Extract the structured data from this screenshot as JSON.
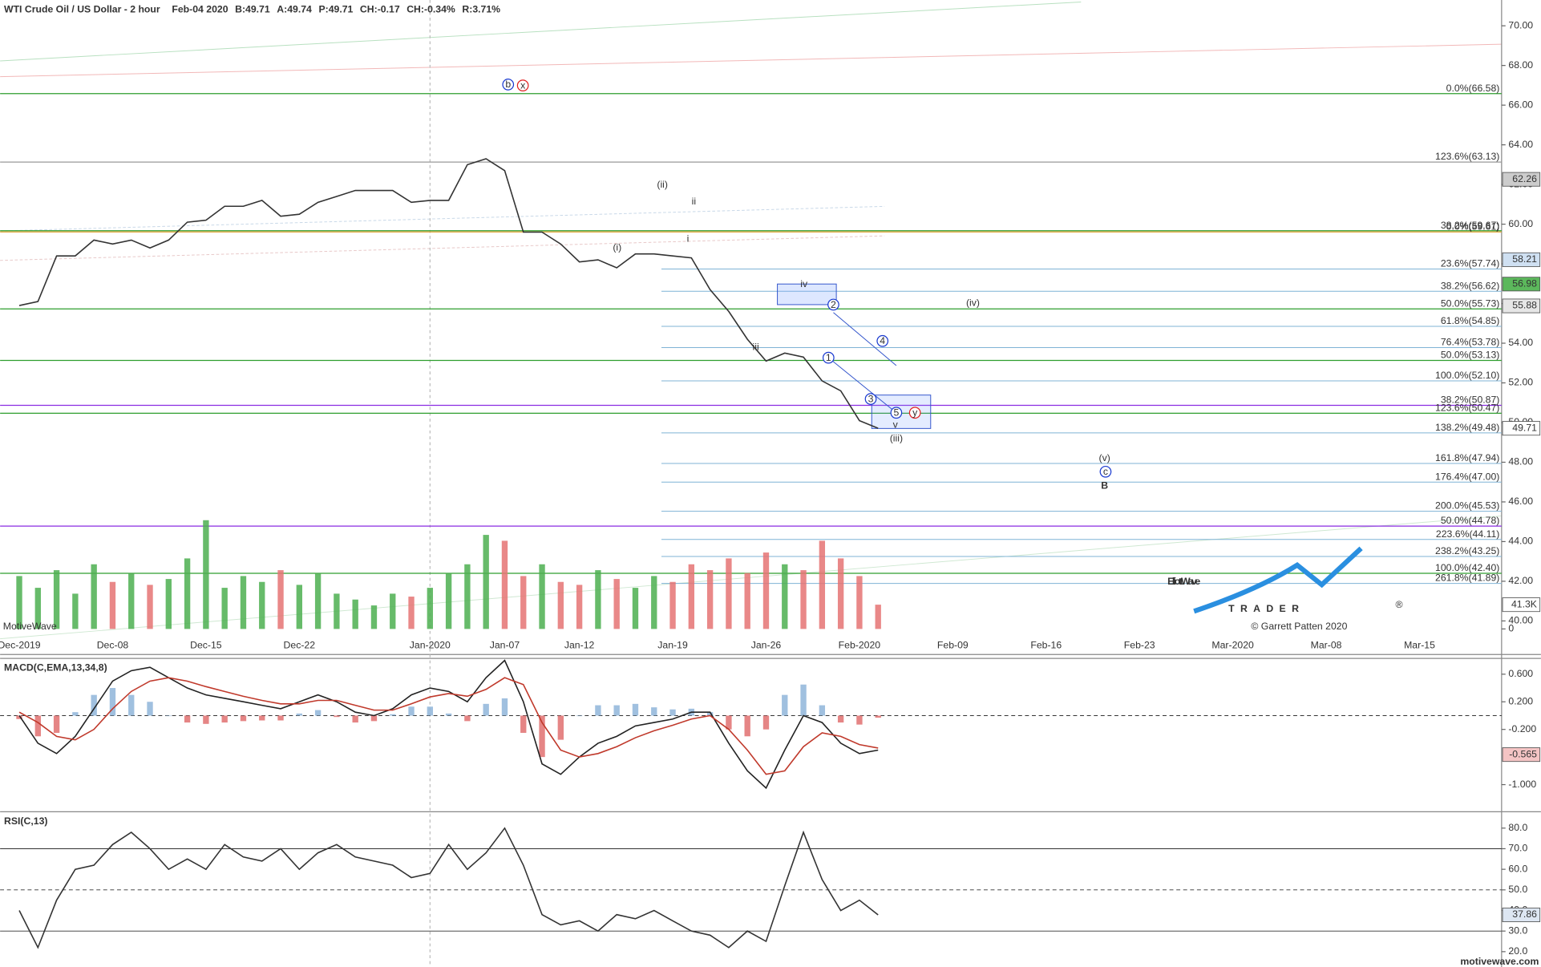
{
  "chart_data": [
    {
      "type": "line",
      "title": "WTI Crude Oil / US Dollar - 2 hour",
      "header_stats": [
        "Feb-04 2020",
        "B:49.71",
        "A:49.74",
        "P:49.71",
        "CH:-0.17",
        "CH:-0.34%",
        "R:3.71%"
      ],
      "categories": [
        "Dec-2019",
        null,
        null,
        null,
        null,
        "Dec-08",
        null,
        null,
        null,
        null,
        "Dec-15",
        null,
        null,
        null,
        null,
        "Dec-22",
        null,
        null,
        null,
        null,
        null,
        null,
        "Jan-2020",
        null,
        null,
        null,
        "Jan-07",
        null,
        null,
        null,
        "Jan-12",
        null,
        null,
        null,
        null,
        "Jan-19",
        null,
        null,
        null,
        null,
        "Jan-26",
        null,
        null,
        null,
        null,
        "Feb-2020",
        null,
        null,
        null,
        null,
        "Feb-09",
        null,
        null,
        null,
        null,
        "Feb-16",
        null,
        null,
        null,
        null,
        "Feb-23",
        null,
        null,
        null,
        null,
        "Mar-2020",
        null,
        null,
        null,
        null,
        "Mar-08",
        null,
        null,
        null,
        null,
        "Mar-15",
        null,
        null,
        null,
        null
      ],
      "series": [
        {
          "color": "#333333",
          "values": [
            55.9,
            56.1,
            58.4,
            58.4,
            59.2,
            59.0,
            59.2,
            58.8,
            59.2,
            60.1,
            60.2,
            60.9,
            60.9,
            61.2,
            60.4,
            60.5,
            61.1,
            61.4,
            61.7,
            61.7,
            61.7,
            61.1,
            61.2,
            61.2,
            63.0,
            63.3,
            62.7,
            59.6,
            59.6,
            59.0,
            58.1,
            58.2,
            57.8,
            58.5,
            58.5,
            58.4,
            58.3,
            56.7,
            55.6,
            54.2,
            53.1,
            53.5,
            53.3,
            52.1,
            51.6,
            50.1,
            49.71,
            null,
            null,
            null,
            null,
            null,
            null,
            null,
            null,
            null,
            null,
            null,
            null,
            null,
            null,
            null,
            null,
            null,
            null,
            null,
            null,
            null,
            null,
            null,
            null,
            null,
            null,
            null,
            null,
            null,
            null,
            null,
            null,
            null
          ]
        },
        {
          "type": "bar",
          "axis": "y2",
          "color": "#4caf50",
          "negative_color": "#e57373",
          "values": [
            90000,
            70000,
            100000,
            60000,
            110000,
            80000,
            95000,
            75000,
            85000,
            120000,
            185000,
            70000,
            90000,
            80000,
            100000,
            75000,
            95000,
            60000,
            50000,
            40000,
            60000,
            55000,
            70000,
            95000,
            110000,
            160000,
            150000,
            90000,
            110000,
            80000,
            75000,
            100000,
            85000,
            70000,
            90000,
            80000,
            110000,
            100000,
            120000,
            95000,
            130000,
            110000,
            100000,
            150000,
            120000,
            90000,
            41300,
            null,
            null,
            null,
            null,
            null,
            null,
            null,
            null,
            null,
            null,
            null,
            null,
            null,
            null,
            null,
            null,
            null,
            null,
            null,
            null,
            null,
            null,
            null,
            null,
            null,
            null,
            null,
            null,
            null,
            null,
            null,
            null,
            null
          ]
        }
      ],
      "ylim": [
        39.2,
        71.3
      ],
      "yticks": [
        {
          "value": 40,
          "label": "40.00"
        },
        {
          "value": 42,
          "label": "42.00"
        },
        {
          "value": 44,
          "label": "44.00"
        },
        {
          "value": 46,
          "label": "46.00"
        },
        {
          "value": 48,
          "label": "48.00"
        },
        {
          "value": 50,
          "label": "50.00"
        },
        {
          "value": 52,
          "label": "52.00"
        },
        {
          "value": 54,
          "label": "54.00"
        },
        {
          "value": 56,
          "label": "56.00"
        },
        {
          "value": 58,
          "label": "58.00"
        },
        {
          "value": 60,
          "label": "60.00"
        },
        {
          "value": 62,
          "label": "62.00"
        },
        {
          "value": 64,
          "label": "64.00"
        },
        {
          "value": 66,
          "label": "66.00"
        },
        {
          "value": 68,
          "label": "68.00"
        },
        {
          "value": 70,
          "label": "70.00"
        }
      ],
      "y2lim": [
        0,
        1070000
      ],
      "y2ticks": [
        0
      ],
      "volume_badge": {
        "value": 41300,
        "label": "41.3K"
      },
      "price_badges": [
        62.26,
        58.21,
        56.98,
        55.88,
        49.71
      ],
      "levels": [
        {
          "label": "0.0%(66.58)",
          "value": 66.58,
          "color": "#2e9e2e",
          "span": "full"
        },
        {
          "label": "123.6%(63.13)",
          "value": 63.13,
          "color": "#999999",
          "span": "full"
        },
        {
          "label": "38.2%(59.67)",
          "value": 59.67,
          "color": "#2e9e2e",
          "span": "full"
        },
        {
          "label": "0.0%(59.61)",
          "value": 59.61,
          "color": "#e0a030",
          "span": "full"
        },
        {
          "label": "23.6%(57.74)",
          "value": 57.74,
          "color": "#7fb3d5",
          "span": "projection"
        },
        {
          "label": "38.2%(56.62)",
          "value": 56.62,
          "color": "#7fb3d5",
          "span": "projection"
        },
        {
          "label": "50.0%(55.73)",
          "value": 55.73,
          "color": "#2e9e2e",
          "span": "full"
        },
        {
          "label": "61.8%(54.85)",
          "value": 54.85,
          "color": "#7fb3d5",
          "span": "projection"
        },
        {
          "label": "76.4%(53.78)",
          "value": 53.78,
          "color": "#7fb3d5",
          "span": "projection"
        },
        {
          "label": "50.0%(53.13)",
          "value": 53.13,
          "color": "#2e9e2e",
          "span": "full"
        },
        {
          "label": "100.0%(52.10)",
          "value": 52.1,
          "color": "#7fb3d5",
          "span": "projection"
        },
        {
          "label": "38.2%(50.87)",
          "value": 50.87,
          "color": "#8a2be2",
          "span": "full"
        },
        {
          "label": "123.6%(50.47)",
          "value": 50.47,
          "color": "#2e9e2e",
          "span": "full"
        },
        {
          "label": "138.2%(49.48)",
          "value": 49.48,
          "color": "#7fb3d5",
          "span": "projection"
        },
        {
          "label": "161.8%(47.94)",
          "value": 47.94,
          "color": "#7fb3d5",
          "span": "projection"
        },
        {
          "label": "176.4%(47.00)",
          "value": 47.0,
          "color": "#7fb3d5",
          "span": "projection"
        },
        {
          "label": "200.0%(45.53)",
          "value": 45.53,
          "color": "#7fb3d5",
          "span": "projection"
        },
        {
          "label": "50.0%(44.78)",
          "value": 44.78,
          "color": "#8a2be2",
          "span": "full"
        },
        {
          "label": "223.6%(44.11)",
          "value": 44.11,
          "color": "#7fb3d5",
          "span": "projection"
        },
        {
          "label": "238.2%(43.25)",
          "value": 43.25,
          "color": "#7fb3d5",
          "span": "projection"
        },
        {
          "label": "100.0%(42.40)",
          "value": 42.4,
          "color": "#2e9e2e",
          "span": "full"
        },
        {
          "label": "261.8%(41.89)",
          "value": 41.89,
          "color": "#7fb3d5",
          "span": "projection"
        }
      ],
      "wave_labels": [
        "(ii)",
        "ii",
        "i",
        "(i)",
        "iii",
        "iv",
        "(iv)",
        "v",
        "(iii)",
        "(v)",
        "B",
        "b",
        "x",
        "y",
        "1",
        "2",
        "3",
        "4",
        "5",
        "c"
      ]
    },
    {
      "type": "line",
      "title": "MACD(C,EMA,13,34,8)",
      "series": [
        {
          "color": "#222222",
          "values": [
            0.0,
            -0.4,
            -0.55,
            -0.3,
            0.1,
            0.5,
            0.65,
            0.7,
            0.55,
            0.4,
            0.3,
            0.25,
            0.2,
            0.15,
            0.1,
            0.2,
            0.3,
            0.2,
            0.05,
            0.0,
            0.1,
            0.3,
            0.4,
            0.35,
            0.2,
            0.55,
            0.8,
            0.2,
            -0.7,
            -0.85,
            -0.6,
            -0.4,
            -0.3,
            -0.15,
            -0.1,
            -0.05,
            0.05,
            0.05,
            -0.4,
            -0.8,
            -1.05,
            -0.5,
            0.0,
            -0.1,
            -0.4,
            -0.55,
            -0.5,
            null,
            null,
            null,
            null,
            null,
            null,
            null,
            null,
            null,
            null,
            null,
            null,
            null,
            null,
            null,
            null,
            null,
            null,
            null,
            null,
            null,
            null,
            null,
            null,
            null,
            null,
            null,
            null,
            null,
            null,
            null,
            null,
            null
          ]
        },
        {
          "color": "#c0392b",
          "values": [
            0.05,
            -0.1,
            -0.3,
            -0.35,
            -0.2,
            0.1,
            0.35,
            0.5,
            0.55,
            0.5,
            0.42,
            0.35,
            0.28,
            0.22,
            0.17,
            0.17,
            0.22,
            0.22,
            0.15,
            0.08,
            0.08,
            0.17,
            0.27,
            0.32,
            0.28,
            0.38,
            0.55,
            0.45,
            -0.1,
            -0.5,
            -0.6,
            -0.55,
            -0.45,
            -0.32,
            -0.22,
            -0.14,
            -0.05,
            0.0,
            -0.2,
            -0.5,
            -0.85,
            -0.8,
            -0.45,
            -0.25,
            -0.3,
            -0.42,
            -0.47,
            null,
            null,
            null,
            null,
            null,
            null,
            null,
            null,
            null,
            null,
            null,
            null,
            null,
            null,
            null,
            null,
            null,
            null,
            null,
            null,
            null,
            null,
            null,
            null,
            null,
            null,
            null,
            null,
            null,
            null,
            null,
            null,
            null
          ]
        },
        {
          "type": "bar",
          "color": "#8fb5d9",
          "negative_color": "#e07070",
          "values": [
            -0.05,
            -0.3,
            -0.25,
            0.05,
            0.3,
            0.4,
            0.3,
            0.2,
            0.0,
            -0.1,
            -0.12,
            -0.1,
            -0.08,
            -0.07,
            -0.07,
            0.03,
            0.08,
            -0.02,
            -0.1,
            -0.08,
            0.02,
            0.13,
            0.13,
            0.03,
            -0.08,
            0.17,
            0.25,
            -0.25,
            -0.6,
            -0.35,
            0.0,
            0.15,
            0.15,
            0.17,
            0.12,
            0.09,
            0.1,
            0.05,
            -0.2,
            -0.3,
            -0.2,
            0.3,
            0.45,
            0.15,
            -0.1,
            -0.13,
            -0.03,
            null,
            null,
            null,
            null,
            null,
            null,
            null,
            null,
            null,
            null,
            null,
            null,
            null,
            null,
            null,
            null,
            null,
            null,
            null,
            null,
            null,
            null,
            null,
            null,
            null,
            null,
            null,
            null,
            null,
            null,
            null,
            null,
            null
          ]
        }
      ],
      "ylim": [
        -1.35,
        0.8
      ],
      "yticks": [
        {
          "value": 0.6,
          "label": "0.600"
        },
        {
          "value": 0.2,
          "label": "0.200"
        },
        {
          "value": -0.2,
          "label": "-0.200"
        },
        {
          "value": -1,
          "label": "-1.000"
        }
      ],
      "dashed_lines": [
        0
      ],
      "reference_lines": [],
      "badge": -0.565
    },
    {
      "type": "line",
      "title": "RSI(C,13)",
      "series": [
        {
          "color": "#333333",
          "values": [
            40,
            22,
            45,
            60,
            62,
            72,
            78,
            70,
            60,
            65,
            60,
            72,
            66,
            64,
            70,
            60,
            68,
            72,
            66,
            64,
            62,
            56,
            58,
            72,
            60,
            68,
            80,
            62,
            38,
            33,
            35,
            30,
            38,
            36,
            40,
            35,
            30,
            28,
            22,
            30,
            25,
            52,
            78,
            55,
            40,
            45,
            37.86,
            null,
            null,
            null,
            null,
            null,
            null,
            null,
            null,
            null,
            null,
            null,
            null,
            null,
            null,
            null,
            null,
            null,
            null,
            null,
            null,
            null,
            null,
            null,
            null,
            null,
            null,
            null,
            null,
            null,
            null,
            null,
            null,
            null
          ]
        }
      ],
      "ylim": [
        13.5,
        87
      ],
      "yticks": [
        {
          "value": 20,
          "label": "20.0"
        },
        {
          "value": 30,
          "label": "30.0"
        },
        {
          "value": 40,
          "label": "40.0"
        },
        {
          "value": 50,
          "label": "50.0"
        },
        {
          "value": 60,
          "label": "60.0"
        },
        {
          "value": 70,
          "label": "70.0"
        },
        {
          "value": 80,
          "label": "80.0"
        }
      ],
      "dashed_lines": [
        50
      ],
      "reference_lines": [
        70,
        30
      ],
      "badge": 37.86
    }
  ],
  "branding": {
    "logo_main": "ElliottWave",
    "logo_sub": "TRADER",
    "logo_mark": "®",
    "copyright": "© Garrett Patten 2020",
    "watermark": "MotiveWave",
    "site": "motivewave.com"
  }
}
